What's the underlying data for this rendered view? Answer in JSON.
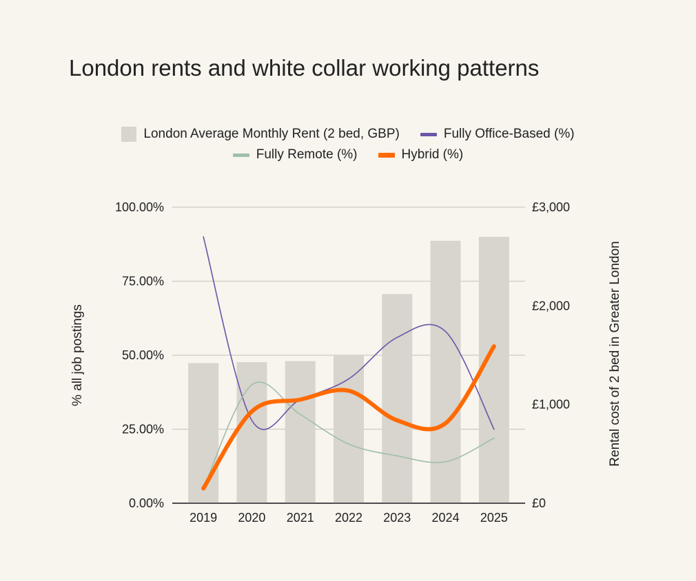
{
  "chart_data": {
    "type": "bar",
    "title": "London rents and white collar working patterns",
    "categories": [
      "2019",
      "2020",
      "2021",
      "2022",
      "2023",
      "2024",
      "2025"
    ],
    "y_left": {
      "label": "% all job postings",
      "range": [
        0,
        100
      ],
      "ticks": [
        "0.00%",
        "25.00%",
        "50.00%",
        "75.00%",
        "100.00%"
      ]
    },
    "y_right": {
      "label": "Rental cost of 2 bed in Greater London",
      "range": [
        0,
        3000
      ],
      "ticks": [
        "£0",
        "£1,000",
        "£2,000",
        "£3,000"
      ]
    },
    "bar_series": {
      "name": "London Average Monthly Rent (2 bed, GBP)",
      "axis": "right",
      "color": "#d8d4ce",
      "values": [
        1420,
        1430,
        1440,
        1500,
        2120,
        2660,
        2700
      ]
    },
    "line_series": [
      {
        "name": "Fully Office-Based (%)",
        "axis": "left",
        "color": "#6a55a8",
        "width": 1.6,
        "values": [
          90,
          28,
          35,
          42,
          56,
          58,
          25
        ]
      },
      {
        "name": "Fully Remote (%)",
        "axis": "left",
        "color": "#9fbfaa",
        "width": 1.6,
        "values": [
          5,
          40,
          30,
          20,
          16,
          14,
          22
        ]
      },
      {
        "name": "Hybrid (%)",
        "axis": "left",
        "color": "#ff6a00",
        "width": 6,
        "values": [
          5,
          31,
          35,
          38,
          28,
          27,
          53
        ]
      }
    ],
    "legend_position": "top",
    "grid": true
  }
}
